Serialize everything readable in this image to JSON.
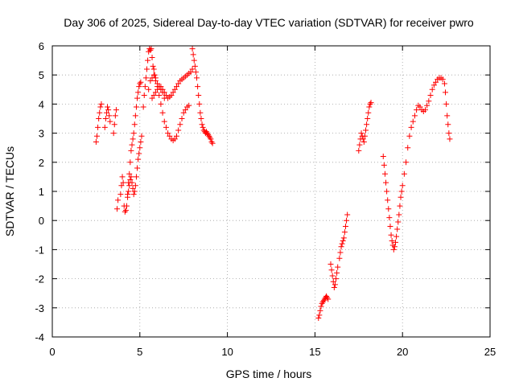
{
  "chart_data": {
    "type": "scatter",
    "title": "Day 306 of 2025, Sidereal Day-to-day VTEC variation (SDTVAR) for receiver pwro",
    "xlabel": "GPS time / hours",
    "ylabel": "SDTVAR / TECUs",
    "xlim": [
      0,
      25
    ],
    "ylim": [
      -4,
      6
    ],
    "xticks": [
      "0",
      "5",
      "10",
      "15",
      "20",
      "25"
    ],
    "yticks": [
      "-4",
      "-3",
      "-2",
      "-1",
      "0",
      "1",
      "2",
      "3",
      "4",
      "5",
      "6"
    ],
    "grid": true,
    "marker": "+",
    "color": "#ff0000",
    "series": [
      {
        "points": [
          [
            2.5,
            2.7
          ],
          [
            2.55,
            2.9
          ],
          [
            2.6,
            3.2
          ],
          [
            2.65,
            3.5
          ],
          [
            2.7,
            3.7
          ],
          [
            2.75,
            3.9
          ],
          [
            2.8,
            4.0
          ],
          [
            3.0,
            3.2
          ],
          [
            3.05,
            3.5
          ],
          [
            3.1,
            3.7
          ],
          [
            3.15,
            3.9
          ],
          [
            3.2,
            3.8
          ],
          [
            3.25,
            3.6
          ],
          [
            3.3,
            3.4
          ],
          [
            3.5,
            3.0
          ],
          [
            3.55,
            3.3
          ],
          [
            3.6,
            3.6
          ],
          [
            3.65,
            3.8
          ],
          [
            3.7,
            0.4
          ],
          [
            3.75,
            0.7
          ],
          [
            3.9,
            0.9
          ],
          [
            3.95,
            1.2
          ],
          [
            4.0,
            1.5
          ],
          [
            4.05,
            1.3
          ],
          [
            4.1,
            0.5
          ],
          [
            4.15,
            0.3
          ],
          [
            4.2,
            0.35
          ],
          [
            4.25,
            0.5
          ],
          [
            4.3,
            0.8
          ],
          [
            4.35,
            1.0
          ],
          [
            4.4,
            1.2
          ],
          [
            4.45,
            1.4
          ],
          [
            4.5,
            1.5
          ],
          [
            4.55,
            1.3
          ],
          [
            4.6,
            1.1
          ],
          [
            4.65,
            0.9
          ],
          [
            4.7,
            1.0
          ],
          [
            4.75,
            1.2
          ],
          [
            4.8,
            1.5
          ],
          [
            4.85,
            1.8
          ],
          [
            4.9,
            2.1
          ],
          [
            4.95,
            2.3
          ],
          [
            5.0,
            2.5
          ],
          [
            5.05,
            2.7
          ],
          [
            5.1,
            2.9
          ],
          [
            4.3,
            0.9
          ],
          [
            4.35,
            1.3
          ],
          [
            4.4,
            1.6
          ],
          [
            4.45,
            2.0
          ],
          [
            4.5,
            2.4
          ],
          [
            4.55,
            2.6
          ],
          [
            4.6,
            2.8
          ],
          [
            4.65,
            3.0
          ],
          [
            4.7,
            3.3
          ],
          [
            4.75,
            3.6
          ],
          [
            4.8,
            3.9
          ],
          [
            4.85,
            4.2
          ],
          [
            4.9,
            4.4
          ],
          [
            4.95,
            4.6
          ],
          [
            5.0,
            4.7
          ],
          [
            5.05,
            4.75
          ],
          [
            5.2,
            3.9
          ],
          [
            5.25,
            4.3
          ],
          [
            5.3,
            4.6
          ],
          [
            5.35,
            4.9
          ],
          [
            5.4,
            5.2
          ],
          [
            5.45,
            5.5
          ],
          [
            5.5,
            5.8
          ],
          [
            5.55,
            5.9
          ],
          [
            5.6,
            5.85
          ],
          [
            5.65,
            5.9
          ],
          [
            5.7,
            5.6
          ],
          [
            5.75,
            5.3
          ],
          [
            5.8,
            5.2
          ],
          [
            5.85,
            5.0
          ],
          [
            5.9,
            4.8
          ],
          [
            6.0,
            4.7
          ],
          [
            6.1,
            4.6
          ],
          [
            6.2,
            4.6
          ],
          [
            6.3,
            4.5
          ],
          [
            6.4,
            4.4
          ],
          [
            6.5,
            4.3
          ],
          [
            6.6,
            4.2
          ],
          [
            6.7,
            4.25
          ],
          [
            6.8,
            4.3
          ],
          [
            6.9,
            4.4
          ],
          [
            7.0,
            4.5
          ],
          [
            7.1,
            4.6
          ],
          [
            7.2,
            4.7
          ],
          [
            7.3,
            4.8
          ],
          [
            7.4,
            4.85
          ],
          [
            7.5,
            4.9
          ],
          [
            7.6,
            4.95
          ],
          [
            7.7,
            5.0
          ],
          [
            7.8,
            5.05
          ],
          [
            7.9,
            5.1
          ],
          [
            8.0,
            5.2
          ],
          [
            5.5,
            4.5
          ],
          [
            5.6,
            4.8
          ],
          [
            5.7,
            4.9
          ],
          [
            5.8,
            5.0
          ],
          [
            5.9,
            4.9
          ],
          [
            6.0,
            4.6
          ],
          [
            6.1,
            4.3
          ],
          [
            6.2,
            4.0
          ],
          [
            6.3,
            3.7
          ],
          [
            6.4,
            3.4
          ],
          [
            6.5,
            3.2
          ],
          [
            6.6,
            3.0
          ],
          [
            6.7,
            2.9
          ],
          [
            6.8,
            2.8
          ],
          [
            6.9,
            2.75
          ],
          [
            7.0,
            2.8
          ],
          [
            7.1,
            2.9
          ],
          [
            7.2,
            3.1
          ],
          [
            7.3,
            3.3
          ],
          [
            7.4,
            3.5
          ],
          [
            7.5,
            3.7
          ],
          [
            7.6,
            3.8
          ],
          [
            7.7,
            3.9
          ],
          [
            7.8,
            3.95
          ],
          [
            5.7,
            4.2
          ],
          [
            5.8,
            4.3
          ],
          [
            5.9,
            4.4
          ],
          [
            6.0,
            4.5
          ],
          [
            6.1,
            4.6
          ],
          [
            6.2,
            4.5
          ],
          [
            6.3,
            4.4
          ],
          [
            6.4,
            4.2
          ],
          [
            8.0,
            5.9
          ],
          [
            8.05,
            5.7
          ],
          [
            8.1,
            5.5
          ],
          [
            8.15,
            5.3
          ],
          [
            8.2,
            5.1
          ],
          [
            8.25,
            4.9
          ],
          [
            8.3,
            4.6
          ],
          [
            8.35,
            4.3
          ],
          [
            8.4,
            4.0
          ],
          [
            8.45,
            3.7
          ],
          [
            8.5,
            3.5
          ],
          [
            8.55,
            3.3
          ],
          [
            8.6,
            3.2
          ],
          [
            8.65,
            3.1
          ],
          [
            8.7,
            3.05
          ],
          [
            8.75,
            3.0
          ],
          [
            8.8,
            3.05
          ],
          [
            8.85,
            3.0
          ],
          [
            8.9,
            2.95
          ],
          [
            8.95,
            2.9
          ],
          [
            9.0,
            2.85
          ],
          [
            9.05,
            2.8
          ],
          [
            9.1,
            2.7
          ],
          [
            9.15,
            2.65
          ]
        ]
      },
      {
        "points": [
          [
            15.2,
            -3.35
          ],
          [
            15.25,
            -3.25
          ],
          [
            15.3,
            -3.1
          ],
          [
            15.35,
            -2.95
          ],
          [
            15.4,
            -2.85
          ],
          [
            15.45,
            -2.8
          ],
          [
            15.5,
            -2.75
          ],
          [
            15.55,
            -2.7
          ],
          [
            15.6,
            -2.65
          ],
          [
            15.65,
            -2.6
          ],
          [
            15.7,
            -2.65
          ],
          [
            15.75,
            -2.7
          ],
          [
            15.9,
            -1.5
          ],
          [
            15.95,
            -1.7
          ],
          [
            16.0,
            -1.9
          ],
          [
            16.05,
            -2.1
          ],
          [
            16.1,
            -2.3
          ],
          [
            16.15,
            -2.2
          ],
          [
            16.2,
            -2.0
          ],
          [
            16.25,
            -1.8
          ],
          [
            16.3,
            -1.6
          ],
          [
            16.4,
            -1.3
          ],
          [
            16.45,
            -1.1
          ],
          [
            16.5,
            -0.9
          ],
          [
            16.55,
            -0.8
          ],
          [
            16.6,
            -0.7
          ],
          [
            16.65,
            -0.6
          ],
          [
            16.7,
            -0.4
          ],
          [
            16.75,
            -0.2
          ],
          [
            16.8,
            0.0
          ],
          [
            16.85,
            0.2
          ],
          [
            17.5,
            2.4
          ],
          [
            17.55,
            2.6
          ],
          [
            17.6,
            2.8
          ],
          [
            17.65,
            3.0
          ],
          [
            17.7,
            2.9
          ],
          [
            17.75,
            2.8
          ],
          [
            17.8,
            2.7
          ],
          [
            17.85,
            2.9
          ],
          [
            17.9,
            3.1
          ],
          [
            17.95,
            3.3
          ],
          [
            18.0,
            3.5
          ],
          [
            18.05,
            3.7
          ],
          [
            18.1,
            3.9
          ],
          [
            18.15,
            4.0
          ],
          [
            18.2,
            4.05
          ],
          [
            18.9,
            2.2
          ],
          [
            18.95,
            1.9
          ],
          [
            19.0,
            1.6
          ],
          [
            19.05,
            1.3
          ],
          [
            19.1,
            1.0
          ],
          [
            19.15,
            0.7
          ],
          [
            19.2,
            0.4
          ],
          [
            19.25,
            0.1
          ],
          [
            19.3,
            -0.2
          ],
          [
            19.35,
            -0.5
          ],
          [
            19.4,
            -0.7
          ],
          [
            19.45,
            -0.85
          ],
          [
            19.5,
            -1.0
          ],
          [
            19.55,
            -0.9
          ],
          [
            19.6,
            -0.75
          ],
          [
            19.65,
            -0.55
          ],
          [
            19.7,
            -0.3
          ],
          [
            19.75,
            -0.05
          ],
          [
            19.8,
            0.2
          ],
          [
            19.85,
            0.5
          ],
          [
            19.9,
            0.8
          ],
          [
            19.95,
            1.0
          ],
          [
            20.0,
            1.2
          ],
          [
            20.1,
            1.6
          ],
          [
            20.2,
            2.0
          ],
          [
            20.3,
            2.5
          ],
          [
            20.4,
            2.9
          ],
          [
            20.5,
            3.2
          ],
          [
            20.6,
            3.4
          ],
          [
            20.7,
            3.6
          ],
          [
            20.8,
            3.8
          ],
          [
            20.9,
            3.95
          ],
          [
            21.0,
            3.9
          ],
          [
            21.1,
            3.8
          ],
          [
            21.2,
            3.75
          ],
          [
            21.3,
            3.8
          ],
          [
            21.4,
            3.95
          ],
          [
            21.5,
            4.1
          ],
          [
            21.6,
            4.3
          ],
          [
            21.7,
            4.5
          ],
          [
            21.8,
            4.65
          ],
          [
            21.9,
            4.75
          ],
          [
            22.0,
            4.85
          ],
          [
            22.1,
            4.9
          ],
          [
            22.2,
            4.9
          ],
          [
            22.3,
            4.85
          ],
          [
            22.4,
            4.7
          ],
          [
            22.45,
            4.4
          ],
          [
            22.5,
            4.0
          ],
          [
            22.55,
            3.6
          ],
          [
            22.6,
            3.3
          ],
          [
            22.65,
            3.0
          ],
          [
            22.7,
            2.8
          ]
        ]
      }
    ]
  }
}
